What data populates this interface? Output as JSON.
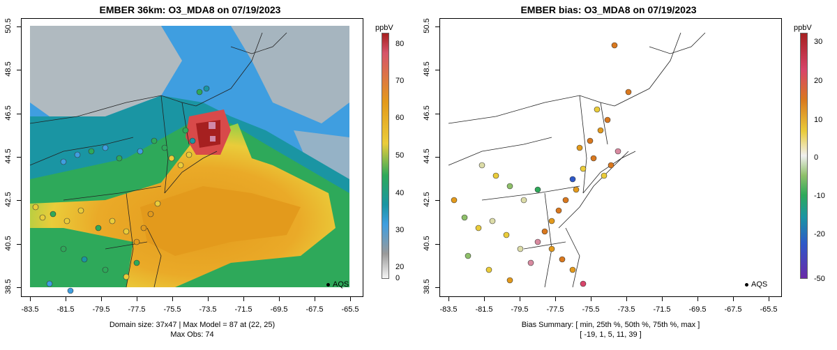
{
  "left": {
    "title": "EMBER 36km: O3_MDA8 on 07/19/2023",
    "unit": "ppbV",
    "colorbar_ticks": [
      "80",
      "70",
      "60",
      "50",
      "40",
      "30",
      "20",
      "0"
    ],
    "caption_line1": "Domain size: 37x47 | Max Model = 87 at (22, 25)",
    "caption_line2": "Max Obs: 74",
    "legend": "AQS"
  },
  "right": {
    "title": "EMBER bias: O3_MDA8 on 07/19/2023",
    "unit": "ppbV",
    "colorbar_ticks": [
      "30",
      "20",
      "10",
      "0",
      "-10",
      "-20",
      "-50"
    ],
    "caption_line1": "Bias Summary: [ min, 25th %, 50th %, 75th %, max ]",
    "caption_line2": "[ -19,   1,   5,   11,   39 ]",
    "legend": "AQS"
  },
  "axes": {
    "x_ticks": [
      "-83.5",
      "-81.5",
      "-79.5",
      "-77.5",
      "-75.5",
      "-73.5",
      "-71.5",
      "-69.5",
      "-67.5",
      "-65.5"
    ],
    "y_ticks": [
      "50.5",
      "48.5",
      "46.5",
      "44.5",
      "42.5",
      "40.5",
      "38.5"
    ]
  },
  "colors": {
    "ozone_high": "#b2222a",
    "ozone_orange": "#e39a1c",
    "ozone_yellow": "#eacc3a",
    "ozone_green": "#2ea95a",
    "ozone_teal": "#1a95a3",
    "ozone_blue": "#3f9ee0",
    "ozone_grey": "#b8b8b8"
  }
}
